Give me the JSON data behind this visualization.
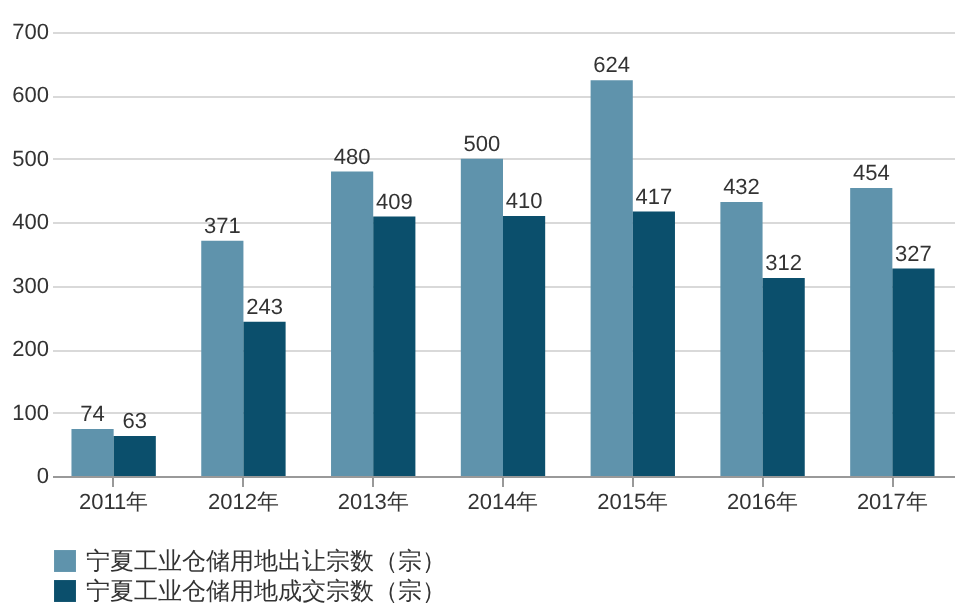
{
  "chart_data": {
    "type": "bar",
    "categories": [
      "2011年",
      "2012年",
      "2013年",
      "2014年",
      "2015年",
      "2016年",
      "2017年"
    ],
    "series": [
      {
        "name": "宁夏工业仓储用地出让宗数（宗）",
        "color": "#5f93ac",
        "values": [
          74,
          371,
          480,
          500,
          624,
          432,
          454
        ]
      },
      {
        "name": "宁夏工业仓储用地成交宗数（宗）",
        "color": "#0b4f6c",
        "values": [
          63,
          243,
          409,
          410,
          417,
          312,
          327
        ]
      }
    ],
    "ylim": [
      0,
      700
    ],
    "yticks": [
      0,
      100,
      200,
      300,
      400,
      500,
      600,
      700
    ],
    "grid": "y",
    "legend": "bottom",
    "data_labels": true
  }
}
